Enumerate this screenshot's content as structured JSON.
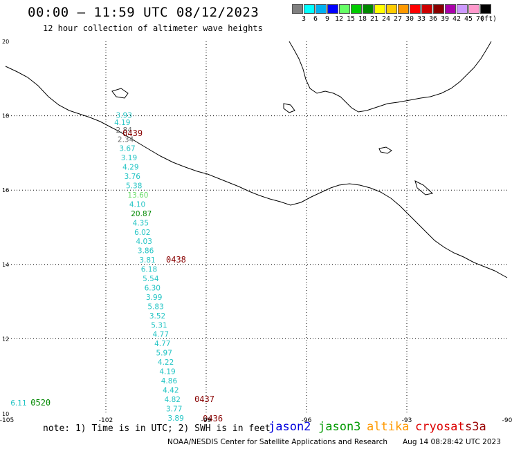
{
  "header": {
    "title": "00:00 – 11:59 UTC 08/12/2023",
    "subtitle": "12 hour collection of altimeter wave heights"
  },
  "legend": {
    "colors": [
      "#808080",
      "#00ffff",
      "#00b0f0",
      "#0000ff",
      "#66ff66",
      "#00cc00",
      "#008800",
      "#ffff00",
      "#ffcc00",
      "#ff9900",
      "#ff0000",
      "#cc0000",
      "#880000",
      "#aa00aa",
      "#cc99ff",
      "#ff99cc",
      "#000000"
    ],
    "labels": [
      "3",
      "6",
      "9",
      "12",
      "15",
      "18",
      "21",
      "24",
      "27",
      "30",
      "33",
      "36",
      "39",
      "42",
      "45",
      "70",
      "(ft)"
    ]
  },
  "axes": {
    "lon_labels": [
      "-105",
      "-102",
      "-99",
      "-96",
      "-93",
      "-90"
    ],
    "lat_labels": [
      "20",
      "18",
      "16",
      "14",
      "12",
      "10"
    ]
  },
  "chart_data": {
    "type": "scatter",
    "xlim": [
      -105,
      -90
    ],
    "ylim": [
      10,
      20
    ],
    "track_values": [
      {
        "lon": -101.7,
        "lat": 17.95,
        "value": "3.93",
        "color": "#22c4c4"
      },
      {
        "lon": -101.75,
        "lat": 17.75,
        "value": "4.19",
        "color": "#22c4c4"
      },
      {
        "lon": -101.7,
        "lat": 17.55,
        "value": "2.84",
        "color": "#707070"
      },
      {
        "lon": -101.65,
        "lat": 17.3,
        "value": "2.34",
        "color": "#707070"
      },
      {
        "lon": -101.6,
        "lat": 17.05,
        "value": "3.67",
        "color": "#22c4c4"
      },
      {
        "lon": -101.55,
        "lat": 16.8,
        "value": "3.19",
        "color": "#22c4c4"
      },
      {
        "lon": -101.5,
        "lat": 16.55,
        "value": "4.29",
        "color": "#22c4c4"
      },
      {
        "lon": -101.45,
        "lat": 16.3,
        "value": "3.76",
        "color": "#22c4c4"
      },
      {
        "lon": -101.4,
        "lat": 16.05,
        "value": "5.38",
        "color": "#22c4c4"
      },
      {
        "lon": -101.35,
        "lat": 15.8,
        "value": "13.60",
        "color": "#66dd66"
      },
      {
        "lon": -101.3,
        "lat": 15.55,
        "value": "4.10",
        "color": "#22c4c4"
      },
      {
        "lon": -101.25,
        "lat": 15.3,
        "value": "20.87",
        "color": "#008800"
      },
      {
        "lon": -101.2,
        "lat": 15.05,
        "value": "4.35",
        "color": "#22c4c4"
      },
      {
        "lon": -101.15,
        "lat": 14.8,
        "value": "6.02",
        "color": "#22c4c4"
      },
      {
        "lon": -101.1,
        "lat": 14.55,
        "value": "4.03",
        "color": "#22c4c4"
      },
      {
        "lon": -101.05,
        "lat": 14.3,
        "value": "3.86",
        "color": "#22c4c4"
      },
      {
        "lon": -101.0,
        "lat": 14.05,
        "value": "3.81",
        "color": "#22c4c4"
      },
      {
        "lon": -100.95,
        "lat": 13.8,
        "value": "6.18",
        "color": "#22c4c4"
      },
      {
        "lon": -100.9,
        "lat": 13.55,
        "value": "5.54",
        "color": "#22c4c4"
      },
      {
        "lon": -100.85,
        "lat": 13.3,
        "value": "6.30",
        "color": "#22c4c4"
      },
      {
        "lon": -100.8,
        "lat": 13.05,
        "value": "3.99",
        "color": "#22c4c4"
      },
      {
        "lon": -100.75,
        "lat": 12.8,
        "value": "5.83",
        "color": "#22c4c4"
      },
      {
        "lon": -100.7,
        "lat": 12.55,
        "value": "3.52",
        "color": "#22c4c4"
      },
      {
        "lon": -100.65,
        "lat": 12.3,
        "value": "5.31",
        "color": "#22c4c4"
      },
      {
        "lon": -100.6,
        "lat": 12.05,
        "value": "4.77",
        "color": "#22c4c4"
      },
      {
        "lon": -100.55,
        "lat": 11.8,
        "value": "4.77",
        "color": "#22c4c4"
      },
      {
        "lon": -100.5,
        "lat": 11.55,
        "value": "5.97",
        "color": "#22c4c4"
      },
      {
        "lon": -100.45,
        "lat": 11.3,
        "value": "4.22",
        "color": "#22c4c4"
      },
      {
        "lon": -100.4,
        "lat": 11.05,
        "value": "4.19",
        "color": "#22c4c4"
      },
      {
        "lon": -100.35,
        "lat": 10.8,
        "value": "4.86",
        "color": "#22c4c4"
      },
      {
        "lon": -100.3,
        "lat": 10.55,
        "value": "4.42",
        "color": "#22c4c4"
      },
      {
        "lon": -100.25,
        "lat": 10.3,
        "value": "4.82",
        "color": "#22c4c4"
      },
      {
        "lon": -100.2,
        "lat": 10.05,
        "value": "3.77",
        "color": "#22c4c4"
      },
      {
        "lon": -100.15,
        "lat": 9.8,
        "value": "3.89",
        "color": "#22c4c4"
      },
      {
        "lon": -104.85,
        "lat": 10.2,
        "value": "6.11",
        "color": "#22c4c4"
      }
    ],
    "time_labels": [
      {
        "lon": -101.5,
        "lat": 17.45,
        "text": "0439",
        "color": "#880000"
      },
      {
        "lon": -100.2,
        "lat": 14.05,
        "text": "0438",
        "color": "#880000"
      },
      {
        "lon": -99.35,
        "lat": 10.3,
        "text": "0437",
        "color": "#880000"
      },
      {
        "lon": -99.1,
        "lat": 9.78,
        "text": "0436",
        "color": "#880000"
      },
      {
        "lon": -104.25,
        "lat": 10.2,
        "text": "0520",
        "color": "#008800"
      }
    ]
  },
  "footer": {
    "note": "note: 1) Time is in UTC; 2) SWH is in feet",
    "satellites": [
      {
        "name": "jason2",
        "color": "#0000dd"
      },
      {
        "name": "jason3",
        "color": "#009900"
      },
      {
        "name": "altika",
        "color": "#ff9900"
      },
      {
        "name": "cryosat",
        "color": "#dd0000"
      },
      {
        "name": "s3a",
        "color": "#990000"
      }
    ],
    "credit": "NOAA/NESDIS Center for Satellite Applications and Research",
    "timestamp": "Aug 14 08:28:42 UTC 2023"
  }
}
